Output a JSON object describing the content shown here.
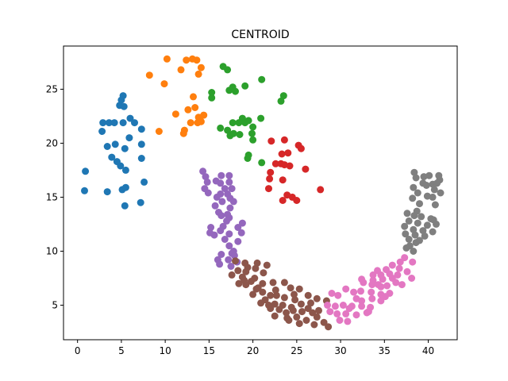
{
  "chart_data": {
    "type": "scatter",
    "title": "CENTROID",
    "xlabel": "",
    "ylabel": "",
    "xlim": [
      -1.6,
      43.3
    ],
    "ylim": [
      1.8,
      29.0
    ],
    "xticks": [
      0,
      5,
      10,
      15,
      20,
      25,
      30,
      35,
      40
    ],
    "yticks": [
      5,
      10,
      15,
      20,
      25
    ],
    "grid": false,
    "legend": "none",
    "series": [
      {
        "color": "#1f77b4",
        "points": [
          [
            5.2,
            24.4
          ],
          [
            5.0,
            24.0
          ],
          [
            4.8,
            23.5
          ],
          [
            5.3,
            23.4
          ],
          [
            2.9,
            21.9
          ],
          [
            3.6,
            21.9
          ],
          [
            5.2,
            21.9
          ],
          [
            2.8,
            21.1
          ],
          [
            4.2,
            21.9
          ],
          [
            6.0,
            22.3
          ],
          [
            6.5,
            21.9
          ],
          [
            7.3,
            21.3
          ],
          [
            5.9,
            20.5
          ],
          [
            3.4,
            19.7
          ],
          [
            4.3,
            19.9
          ],
          [
            7.3,
            19.9
          ],
          [
            5.4,
            19.5
          ],
          [
            3.9,
            18.7
          ],
          [
            4.5,
            18.3
          ],
          [
            7.3,
            18.6
          ],
          [
            4.9,
            17.9
          ],
          [
            5.5,
            17.5
          ],
          [
            0.9,
            17.4
          ],
          [
            7.6,
            16.4
          ],
          [
            0.8,
            15.6
          ],
          [
            3.4,
            15.5
          ],
          [
            5.1,
            15.7
          ],
          [
            5.5,
            15.9
          ],
          [
            7.2,
            14.5
          ],
          [
            5.4,
            14.2
          ]
        ]
      },
      {
        "color": "#ff7f0e",
        "points": [
          [
            10.2,
            27.8
          ],
          [
            12.4,
            27.7
          ],
          [
            13.1,
            27.8
          ],
          [
            13.6,
            27.7
          ],
          [
            14.1,
            27.0
          ],
          [
            11.8,
            26.8
          ],
          [
            13.8,
            26.4
          ],
          [
            8.2,
            26.3
          ],
          [
            9.9,
            25.5
          ],
          [
            13.2,
            24.3
          ],
          [
            12.6,
            23.1
          ],
          [
            13.4,
            23.3
          ],
          [
            14.4,
            22.6
          ],
          [
            11.2,
            22.7
          ],
          [
            13.8,
            22.4
          ],
          [
            12.9,
            21.9
          ],
          [
            13.7,
            21.9
          ],
          [
            14.1,
            22.0
          ],
          [
            12.2,
            21.2
          ],
          [
            12.1,
            20.9
          ],
          [
            9.3,
            21.1
          ]
        ]
      },
      {
        "color": "#2ca02c",
        "points": [
          [
            16.6,
            27.1
          ],
          [
            17.1,
            26.8
          ],
          [
            21.0,
            25.9
          ],
          [
            19.1,
            25.3
          ],
          [
            17.7,
            25.2
          ],
          [
            17.3,
            24.9
          ],
          [
            18.0,
            24.8
          ],
          [
            15.3,
            24.7
          ],
          [
            15.3,
            24.2
          ],
          [
            23.5,
            24.4
          ],
          [
            23.2,
            23.9
          ],
          [
            18.8,
            22.3
          ],
          [
            19.5,
            22.1
          ],
          [
            18.4,
            21.9
          ],
          [
            17.7,
            21.9
          ],
          [
            19.1,
            21.9
          ],
          [
            20.0,
            21.5
          ],
          [
            16.3,
            21.4
          ],
          [
            20.9,
            22.3
          ],
          [
            17.1,
            21.2
          ],
          [
            17.8,
            20.9
          ],
          [
            18.5,
            20.8
          ],
          [
            19.9,
            20.9
          ],
          [
            17.4,
            20.7
          ],
          [
            20.0,
            20.3
          ],
          [
            19.5,
            18.9
          ],
          [
            19.4,
            18.6
          ],
          [
            21.0,
            18.2
          ]
        ]
      },
      {
        "color": "#d62728",
        "points": [
          [
            22.1,
            20.2
          ],
          [
            23.6,
            20.3
          ],
          [
            25.2,
            19.8
          ],
          [
            25.5,
            19.5
          ],
          [
            23.3,
            19.0
          ],
          [
            24.0,
            19.1
          ],
          [
            22.6,
            18.1
          ],
          [
            23.2,
            18.1
          ],
          [
            24.2,
            17.9
          ],
          [
            23.6,
            18.0
          ],
          [
            26.0,
            17.6
          ],
          [
            22.0,
            17.3
          ],
          [
            21.9,
            16.7
          ],
          [
            23.4,
            16.6
          ],
          [
            21.8,
            15.8
          ],
          [
            27.7,
            15.7
          ],
          [
            23.9,
            15.2
          ],
          [
            24.5,
            15.0
          ],
          [
            23.4,
            14.7
          ],
          [
            25.0,
            14.7
          ]
        ]
      },
      {
        "color": "#9467bd",
        "points": [
          [
            14.3,
            17.4
          ],
          [
            14.6,
            16.9
          ],
          [
            16.4,
            17.0
          ],
          [
            17.3,
            17.0
          ],
          [
            14.8,
            16.4
          ],
          [
            15.8,
            16.5
          ],
          [
            16.3,
            16.3
          ],
          [
            17.3,
            16.4
          ],
          [
            14.5,
            15.8
          ],
          [
            16.8,
            15.8
          ],
          [
            17.6,
            15.8
          ],
          [
            14.9,
            15.4
          ],
          [
            16.3,
            15.3
          ],
          [
            17.1,
            15.3
          ],
          [
            15.9,
            15.0
          ],
          [
            17.4,
            14.9
          ],
          [
            16.5,
            14.6
          ],
          [
            17.8,
            14.6
          ],
          [
            15.7,
            14.2
          ],
          [
            17.4,
            14.0
          ],
          [
            16.1,
            13.6
          ],
          [
            17.1,
            13.4
          ],
          [
            16.4,
            13.3
          ],
          [
            17.3,
            13.1
          ],
          [
            17.0,
            12.8
          ],
          [
            18.8,
            12.6
          ],
          [
            16.6,
            12.3
          ],
          [
            15.2,
            12.2
          ],
          [
            18.3,
            12.2
          ],
          [
            16.3,
            11.9
          ],
          [
            15.1,
            11.7
          ],
          [
            17.3,
            11.6
          ],
          [
            18.7,
            11.7
          ],
          [
            15.6,
            11.5
          ],
          [
            16.8,
            11.1
          ],
          [
            18.3,
            10.9
          ],
          [
            17.3,
            10.5
          ],
          [
            17.8,
            10.0
          ],
          [
            16.4,
            9.7
          ],
          [
            17.6,
            9.8
          ],
          [
            16.0,
            9.2
          ],
          [
            17.2,
            9.2
          ],
          [
            18.2,
            9.0
          ],
          [
            16.2,
            8.8
          ],
          [
            17.5,
            8.6
          ],
          [
            17.9,
            9.6
          ]
        ]
      },
      {
        "color": "#8c564b",
        "points": [
          [
            18.0,
            9.1
          ],
          [
            19.1,
            8.9
          ],
          [
            20.5,
            8.9
          ],
          [
            21.6,
            8.7
          ],
          [
            19.4,
            8.5
          ],
          [
            20.3,
            8.4
          ],
          [
            18.3,
            8.2
          ],
          [
            19.2,
            8.1
          ],
          [
            21.2,
            8.0
          ],
          [
            17.6,
            7.8
          ],
          [
            18.8,
            7.6
          ],
          [
            20.2,
            7.5
          ],
          [
            19.8,
            7.2
          ],
          [
            22.3,
            7.1
          ],
          [
            21.1,
            7.0
          ],
          [
            18.4,
            7.0
          ],
          [
            19.2,
            6.9
          ],
          [
            20.6,
            6.6
          ],
          [
            23.6,
            7.1
          ],
          [
            24.3,
            6.6
          ],
          [
            22.6,
            6.4
          ],
          [
            25.3,
            6.5
          ],
          [
            21.1,
            6.2
          ],
          [
            20.0,
            6.0
          ],
          [
            22.0,
            5.9
          ],
          [
            24.7,
            6.0
          ],
          [
            23.6,
            5.7
          ],
          [
            26.3,
            5.9
          ],
          [
            21.4,
            5.5
          ],
          [
            22.5,
            5.1
          ],
          [
            20.9,
            5.2
          ],
          [
            22.0,
            4.7
          ],
          [
            23.4,
            5.0
          ],
          [
            24.4,
            4.8
          ],
          [
            25.5,
            5.1
          ],
          [
            26.6,
            5.2
          ],
          [
            27.3,
            5.6
          ],
          [
            28.4,
            5.4
          ],
          [
            23.0,
            4.6
          ],
          [
            23.8,
            4.3
          ],
          [
            24.6,
            4.5
          ],
          [
            25.6,
            4.4
          ],
          [
            26.8,
            4.3
          ],
          [
            27.5,
            4.5
          ],
          [
            22.5,
            4.0
          ],
          [
            23.9,
            3.8
          ],
          [
            25.0,
            3.9
          ],
          [
            26.1,
            3.6
          ],
          [
            27.3,
            3.9
          ],
          [
            28.1,
            3.4
          ],
          [
            24.1,
            3.6
          ],
          [
            25.3,
            3.3
          ],
          [
            27.0,
            3.2
          ],
          [
            28.6,
            3.0
          ],
          [
            26.3,
            4.7
          ],
          [
            21.8,
            5.0
          ],
          [
            22.7,
            5.9
          ],
          [
            24.8,
            5.5
          ],
          [
            20.4,
            6.5
          ],
          [
            19.0,
            7.3
          ]
        ]
      },
      {
        "color": "#e377c2",
        "points": [
          [
            37.3,
            9.4
          ],
          [
            36.8,
            9.0
          ],
          [
            38.2,
            9.0
          ],
          [
            35.9,
            8.7
          ],
          [
            36.7,
            8.4
          ],
          [
            34.2,
            8.2
          ],
          [
            35.2,
            8.3
          ],
          [
            33.7,
            7.8
          ],
          [
            34.6,
            7.8
          ],
          [
            35.6,
            7.9
          ],
          [
            36.5,
            7.8
          ],
          [
            32.4,
            7.4
          ],
          [
            33.7,
            7.3
          ],
          [
            34.8,
            7.4
          ],
          [
            35.9,
            7.5
          ],
          [
            38.1,
            7.5
          ],
          [
            32.6,
            7.1
          ],
          [
            33.6,
            6.9
          ],
          [
            34.3,
            6.9
          ],
          [
            35.3,
            6.8
          ],
          [
            37.0,
            6.9
          ],
          [
            30.6,
            6.5
          ],
          [
            31.5,
            6.2
          ],
          [
            32.3,
            6.3
          ],
          [
            33.5,
            6.2
          ],
          [
            34.6,
            6.0
          ],
          [
            35.6,
            6.1
          ],
          [
            29.0,
            6.1
          ],
          [
            29.7,
            5.9
          ],
          [
            31.8,
            5.6
          ],
          [
            32.4,
            5.4
          ],
          [
            33.6,
            5.6
          ],
          [
            34.6,
            5.4
          ],
          [
            35.1,
            5.8
          ],
          [
            28.5,
            5.0
          ],
          [
            29.4,
            4.9
          ],
          [
            30.3,
            5.0
          ],
          [
            31.3,
            4.9
          ],
          [
            32.4,
            4.9
          ],
          [
            33.4,
            4.8
          ],
          [
            28.8,
            4.4
          ],
          [
            29.6,
            4.2
          ],
          [
            30.6,
            4.2
          ],
          [
            31.8,
            4.1
          ],
          [
            33.0,
            4.3
          ],
          [
            29.9,
            3.6
          ],
          [
            30.8,
            3.5
          ],
          [
            34.6,
            6.7
          ],
          [
            36.3,
            7.1
          ],
          [
            37.6,
            8.1
          ],
          [
            31.0,
            4.7
          ],
          [
            33.2,
            4.4
          ]
        ]
      },
      {
        "color": "#7f7f7f",
        "points": [
          [
            38.4,
            17.3
          ],
          [
            39.5,
            16.9
          ],
          [
            40.1,
            17.0
          ],
          [
            41.2,
            17.0
          ],
          [
            41.3,
            16.6
          ],
          [
            38.6,
            16.8
          ],
          [
            39.4,
            16.3
          ],
          [
            39.8,
            16.1
          ],
          [
            40.5,
            16.2
          ],
          [
            41.0,
            16.3
          ],
          [
            38.3,
            15.9
          ],
          [
            40.7,
            15.7
          ],
          [
            41.4,
            15.4
          ],
          [
            38.8,
            15.4
          ],
          [
            39.9,
            15.1
          ],
          [
            40.5,
            15.0
          ],
          [
            38.2,
            14.9
          ],
          [
            39.0,
            14.4
          ],
          [
            40.8,
            14.3
          ],
          [
            38.7,
            13.7
          ],
          [
            37.6,
            13.5
          ],
          [
            38.4,
            13.3
          ],
          [
            39.2,
            13.2
          ],
          [
            40.3,
            13.0
          ],
          [
            40.6,
            12.9
          ],
          [
            37.8,
            12.8
          ],
          [
            38.8,
            12.6
          ],
          [
            39.9,
            12.4
          ],
          [
            40.9,
            12.5
          ],
          [
            37.3,
            12.3
          ],
          [
            38.3,
            12.0
          ],
          [
            39.4,
            11.9
          ],
          [
            40.5,
            11.8
          ],
          [
            37.4,
            11.6
          ],
          [
            38.5,
            11.5
          ],
          [
            39.6,
            11.4
          ],
          [
            37.8,
            11.1
          ],
          [
            38.6,
            10.8
          ],
          [
            37.5,
            10.3
          ],
          [
            38.3,
            10.0
          ],
          [
            37.9,
            10.5
          ],
          [
            39.0,
            11.0
          ]
        ]
      }
    ]
  }
}
